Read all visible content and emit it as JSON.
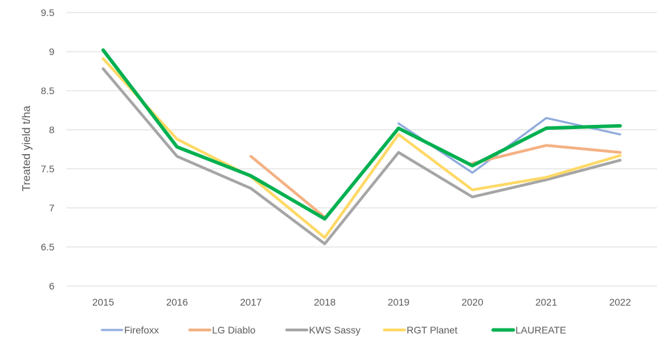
{
  "chart_data": {
    "type": "line",
    "title": "",
    "xlabel": "",
    "ylabel": "Treated yield t/ha",
    "ylim": [
      6,
      9.5
    ],
    "yticks": [
      "6",
      "6.5",
      "7",
      "7.5",
      "8",
      "8.5",
      "9",
      "9.5"
    ],
    "categories": [
      "2015",
      "2016",
      "2017",
      "2018",
      "2019",
      "2020",
      "2021",
      "2022"
    ],
    "grid": "horizontal",
    "legend_position": "bottom",
    "series": [
      {
        "name": "Firefoxx",
        "color": "#8faadc",
        "width": 3,
        "values": [
          null,
          null,
          null,
          null,
          8.08,
          7.45,
          8.15,
          7.94
        ]
      },
      {
        "name": "LG Diablo",
        "color": "#f4b183",
        "width": 4,
        "values": [
          null,
          null,
          7.66,
          6.88,
          null,
          7.57,
          7.8,
          7.71
        ]
      },
      {
        "name": "KWS Sassy",
        "color": "#a5a5a5",
        "width": 4,
        "values": [
          8.78,
          7.66,
          7.25,
          6.54,
          7.71,
          7.14,
          7.36,
          7.61
        ]
      },
      {
        "name": "RGT Planet",
        "color": "#ffd966",
        "width": 4,
        "values": [
          8.91,
          7.88,
          7.4,
          6.62,
          7.94,
          7.23,
          7.39,
          7.67
        ]
      },
      {
        "name": "LAUREATE",
        "color": "#00b050",
        "width": 5,
        "values": [
          9.02,
          7.78,
          7.41,
          6.86,
          8.02,
          7.54,
          8.02,
          8.05
        ]
      }
    ]
  }
}
